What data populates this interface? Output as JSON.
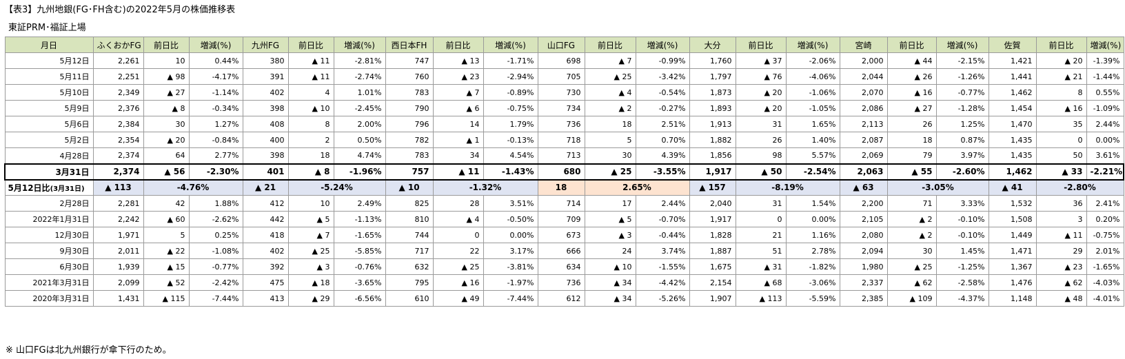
{
  "title": "【表3】九州地銀(FG･FH含む)の2022年5月の株価推移表",
  "subtitle": "東証PRM･福証上場",
  "footnote": "※ 山口FGは北九州銀行が傘下行のため。",
  "columns": [
    "月日",
    "ふくおかFG",
    "前日比",
    "増減(%)",
    "九州FG",
    "前日比",
    "増減(%)",
    "西日本FH",
    "前日比",
    "増減(%)",
    "山口FG",
    "前日比",
    "増減(%)",
    "大分",
    "前日比",
    "増減(%)",
    "宮崎",
    "前日比",
    "増減(%)",
    "佐賀",
    "前日比",
    "増減(%)"
  ],
  "rows_top": [
    [
      "5月12日",
      "2,261",
      "10",
      "0.44%",
      "380",
      "▲ 11",
      "-2.81%",
      "747",
      "▲ 13",
      "-1.71%",
      "698",
      "▲ 7",
      "-0.99%",
      "1,760",
      "▲ 37",
      "-2.06%",
      "2,000",
      "▲ 44",
      "-2.15%",
      "1,421",
      "▲ 20",
      "-1.39%"
    ],
    [
      "5月11日",
      "2,251",
      "▲ 98",
      "-4.17%",
      "391",
      "▲ 11",
      "-2.74%",
      "760",
      "▲ 23",
      "-2.94%",
      "705",
      "▲ 25",
      "-3.42%",
      "1,797",
      "▲ 76",
      "-4.06%",
      "2,044",
      "▲ 26",
      "-1.26%",
      "1,441",
      "▲ 21",
      "-1.44%"
    ],
    [
      "5月10日",
      "2,349",
      "▲ 27",
      "-1.14%",
      "402",
      "4",
      "1.01%",
      "783",
      "▲ 7",
      "-0.89%",
      "730",
      "▲ 4",
      "-0.54%",
      "1,873",
      "▲ 20",
      "-1.06%",
      "2,070",
      "▲ 16",
      "-0.77%",
      "1,462",
      "8",
      "0.55%"
    ],
    [
      "5月9日",
      "2,376",
      "▲ 8",
      "-0.34%",
      "398",
      "▲ 10",
      "-2.45%",
      "790",
      "▲ 6",
      "-0.75%",
      "734",
      "▲ 2",
      "-0.27%",
      "1,893",
      "▲ 20",
      "-1.05%",
      "2,086",
      "▲ 27",
      "-1.28%",
      "1,454",
      "▲ 16",
      "-1.09%"
    ],
    [
      "5月6日",
      "2,384",
      "30",
      "1.27%",
      "408",
      "8",
      "2.00%",
      "796",
      "14",
      "1.79%",
      "736",
      "18",
      "2.51%",
      "1,913",
      "31",
      "1.65%",
      "2,113",
      "26",
      "1.25%",
      "1,470",
      "35",
      "2.44%"
    ],
    [
      "5月2日",
      "2,354",
      "▲ 20",
      "-0.84%",
      "400",
      "2",
      "0.50%",
      "782",
      "▲ 1",
      "-0.13%",
      "718",
      "5",
      "0.70%",
      "1,882",
      "26",
      "1.40%",
      "2,087",
      "18",
      "0.87%",
      "1,435",
      "0",
      "0.00%"
    ],
    [
      "4月28日",
      "2,374",
      "64",
      "2.77%",
      "398",
      "18",
      "4.74%",
      "783",
      "34",
      "4.54%",
      "713",
      "30",
      "4.39%",
      "1,856",
      "98",
      "5.57%",
      "2,069",
      "79",
      "3.97%",
      "1,435",
      "50",
      "3.61%"
    ]
  ],
  "row_base": [
    "3月31日",
    "2,374",
    "▲ 56",
    "-2.30%",
    "401",
    "▲ 8",
    "-1.96%",
    "757",
    "▲ 11",
    "-1.43%",
    "680",
    "▲ 25",
    "-3.55%",
    "1,917",
    "▲ 50",
    "-2.54%",
    "2,063",
    "▲ 55",
    "-2.60%",
    "1,462",
    "▲ 33",
    "-2.21%"
  ],
  "compare": {
    "label_main": "5月12日比",
    "label_sub": "(3月31日)",
    "pairs": [
      {
        "diff": "▲ 113",
        "pct": "-4.76%"
      },
      {
        "diff": "▲ 21",
        "pct": "-5.24%"
      },
      {
        "diff": "▲ 10",
        "pct": "-1.32%"
      },
      {
        "diff": "18",
        "pct": "2.65%"
      },
      {
        "diff": "▲ 157",
        "pct": "-8.19%"
      },
      {
        "diff": "▲ 63",
        "pct": "-3.05%"
      },
      {
        "diff": "▲ 41",
        "pct": "-2.80%"
      }
    ]
  },
  "rows_bottom": [
    [
      "2月28日",
      "2,281",
      "42",
      "1.88%",
      "412",
      "10",
      "2.49%",
      "825",
      "28",
      "3.51%",
      "714",
      "17",
      "2.44%",
      "2,040",
      "31",
      "1.54%",
      "2,200",
      "71",
      "3.33%",
      "1,532",
      "36",
      "2.41%"
    ],
    [
      "2022年1月31日",
      "2,242",
      "▲ 60",
      "-2.62%",
      "442",
      "▲ 5",
      "-1.13%",
      "810",
      "▲ 4",
      "-0.50%",
      "709",
      "▲ 5",
      "-0.70%",
      "1,917",
      "0",
      "0.00%",
      "2,105",
      "▲ 2",
      "-0.10%",
      "1,508",
      "3",
      "0.20%"
    ],
    [
      "12月30日",
      "1,971",
      "5",
      "0.25%",
      "418",
      "▲ 7",
      "-1.65%",
      "744",
      "0",
      "0.00%",
      "673",
      "▲ 3",
      "-0.44%",
      "1,828",
      "21",
      "1.16%",
      "2,080",
      "▲ 2",
      "-0.10%",
      "1,449",
      "▲ 11",
      "-0.75%"
    ],
    [
      "9月30日",
      "2,011",
      "▲ 22",
      "-1.08%",
      "402",
      "▲ 25",
      "-5.85%",
      "717",
      "22",
      "3.17%",
      "666",
      "24",
      "3.74%",
      "1,887",
      "51",
      "2.78%",
      "2,094",
      "30",
      "1.45%",
      "1,471",
      "29",
      "2.01%"
    ],
    [
      "6月30日",
      "1,939",
      "▲ 15",
      "-0.77%",
      "392",
      "▲ 3",
      "-0.76%",
      "632",
      "▲ 25",
      "-3.81%",
      "634",
      "▲ 10",
      "-1.55%",
      "1,675",
      "▲ 31",
      "-1.82%",
      "1,980",
      "▲ 25",
      "-1.25%",
      "1,367",
      "▲ 23",
      "-1.65%"
    ],
    [
      "2021年3月31日",
      "2,099",
      "▲ 52",
      "-2.42%",
      "475",
      "▲ 18",
      "-3.65%",
      "795",
      "▲ 16",
      "-1.97%",
      "736",
      "▲ 34",
      "-4.42%",
      "2,154",
      "▲ 68",
      "-3.06%",
      "2,337",
      "▲ 62",
      "-2.58%",
      "1,476",
      "▲ 62",
      "-4.03%"
    ],
    [
      "2020年3月31日",
      "1,431",
      "▲ 115",
      "-7.44%",
      "413",
      "▲ 29",
      "-6.56%",
      "610",
      "▲ 49",
      "-7.44%",
      "612",
      "▲ 34",
      "-5.26%",
      "1,907",
      "▲ 113",
      "-5.59%",
      "2,385",
      "▲ 109",
      "-4.37%",
      "1,148",
      "▲ 48",
      "-4.01%"
    ]
  ],
  "colors": {
    "header_bg": "#d8e4bc",
    "compare_bg": "#dfe4f2",
    "compare_highlight_bg": "#fde3d0",
    "grid_line": "#9a9a9a"
  }
}
